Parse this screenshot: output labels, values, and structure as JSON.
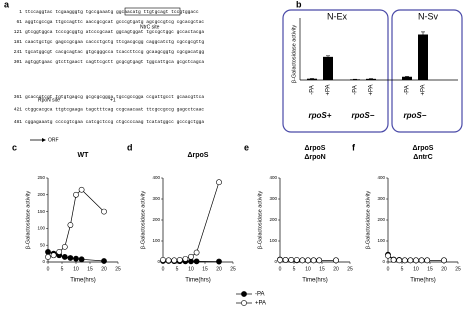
{
  "sequence_panel": {
    "label": "a",
    "lines": [
      {
        "number": "1",
        "text": "ttccaggtac tcgaagggtg tgccgaaatg ggcaacatg ttgtgcagt tccgtggacc"
      },
      {
        "number": "61",
        "text": "aggtcgccga ttgccagttc aaccgcgcat gcccgtgatg agcgccgtcg cgcacgctac"
      },
      {
        "number": "121",
        "text": "gtcggtggca tcccgcggtg atcccgcaat ggcagtggat tgccgctggc gccactacga"
      },
      {
        "number": "181",
        "text": "caactgctgc gagccgcgaa caccctgctg ttcgacgcgg caggcatctg cgccgcgttg"
      },
      {
        "number": "241",
        "text": "tgcatggcgt cacgcagtac gtgcgggcca tcaccttccg gcaagcggtg cgcgacatgg"
      },
      {
        "number": "301",
        "text": "agtggtgaac gtcttgaact cagttcgctt gcgcgtgagt tggcattgca gcgctcagca"
      },
      {
        "number": "361",
        "text": "gcaccgtcgt tgtgtgagcg gcgcgcggga tgccgccgga ccgattgcct gcaacgttca"
      },
      {
        "number": "421",
        "text": "ctggcacgca ttgtcgaaga tagctttcag ccgcaacaat ttcgccgccg gagcctcaac"
      },
      {
        "number": "481",
        "text": "cggagaaatg ccccgtcgaa catcgctccg ctgccccaag tcatatggcc gcccgctgga"
      }
    ],
    "annotations": {
      "ntrc": "NtrC site",
      "rpon": "RpoN site",
      "start": "+1",
      "orf": "ORF"
    }
  },
  "chart_data": [
    {
      "type": "bar",
      "label": "b",
      "ylabel": "β-Galactosidase activity",
      "ylim": [
        0,
        400
      ],
      "color": "#000000",
      "groups": [
        {
          "name": "N-Ex",
          "subgroups": [
            {
              "name": "rpoS+",
              "categories": [
                "-PA",
                "+PA"
              ],
              "values": [
                10,
                178
              ],
              "errors": [
                2,
                8
              ]
            },
            {
              "name": "rpoS−",
              "categories": [
                "-PA",
                "+PA"
              ],
              "values": [
                5,
                9
              ],
              "errors": [
                1,
                2
              ]
            }
          ]
        },
        {
          "name": "N-Sv",
          "subgroups": [
            {
              "name": "rpoS−",
              "categories": [
                "-PA",
                "+PA"
              ],
              "values": [
                25,
                350
              ],
              "errors": [
                3,
                20
              ]
            }
          ]
        }
      ]
    },
    {
      "type": "line",
      "label": "c",
      "title": "WT",
      "xlabel": "Time(hrs)",
      "ylabel": "β-Galactosidase activity",
      "x": [
        0,
        2,
        4,
        6,
        8,
        10,
        12,
        20
      ],
      "xlim": [
        0,
        25
      ],
      "xticks": [
        0,
        5,
        10,
        15,
        20,
        25
      ],
      "ylim": [
        0,
        250
      ],
      "yticks": [
        0,
        50,
        100,
        150,
        200,
        250
      ],
      "series": [
        {
          "name": "-PA",
          "color": "#000000",
          "values": [
            30,
            25,
            20,
            15,
            12,
            10,
            8,
            3
          ]
        },
        {
          "name": "+PA",
          "color": "#ffffff",
          "values": [
            15,
            20,
            30,
            45,
            110,
            200,
            215,
            150
          ]
        }
      ]
    },
    {
      "type": "line",
      "label": "d",
      "title": "ΔrpoS",
      "xlabel": "Time(hrs)",
      "ylabel": "β-Galactosidase activity",
      "x": [
        0,
        2,
        4,
        6,
        8,
        10,
        12,
        20
      ],
      "xlim": [
        0,
        25
      ],
      "xticks": [
        0,
        5,
        10,
        15,
        20,
        25
      ],
      "ylim": [
        0,
        400
      ],
      "yticks": [
        0,
        100,
        200,
        300,
        400
      ],
      "series": [
        {
          "name": "-PA",
          "color": "#000000",
          "values": [
            5,
            5,
            4,
            4,
            3,
            3,
            3,
            2
          ]
        },
        {
          "name": "+PA",
          "color": "#ffffff",
          "values": [
            10,
            8,
            8,
            10,
            15,
            25,
            45,
            380
          ]
        }
      ]
    },
    {
      "type": "line",
      "label": "e",
      "title": "ΔrpoS",
      "subtitle": "ΔrpoN",
      "xlabel": "Time(hrs)",
      "ylabel": "β-Galactosidase activity",
      "x": [
        0,
        2,
        4,
        6,
        8,
        10,
        12,
        14,
        20
      ],
      "xlim": [
        0,
        25
      ],
      "xticks": [
        0,
        5,
        10,
        15,
        20,
        25
      ],
      "ylim": [
        0,
        400
      ],
      "yticks": [
        0,
        100,
        200,
        300,
        400
      ],
      "series": [
        {
          "name": "-PA",
          "color": "#000000",
          "values": [
            12,
            10,
            10,
            8,
            8,
            8,
            8,
            8,
            8
          ]
        },
        {
          "name": "+PA",
          "color": "#ffffff",
          "values": [
            10,
            10,
            10,
            10,
            8,
            8,
            8,
            8,
            8
          ]
        }
      ]
    },
    {
      "type": "line",
      "label": "f",
      "title": "ΔrpoS",
      "subtitle": "ΔntrC",
      "xlabel": "Time(hrs)",
      "ylabel": "β-Galactosidase activity",
      "x": [
        0,
        2,
        4,
        6,
        8,
        10,
        12,
        14,
        20
      ],
      "xlim": [
        0,
        25
      ],
      "xticks": [
        0,
        5,
        10,
        15,
        20,
        25
      ],
      "ylim": [
        0,
        400
      ],
      "yticks": [
        0,
        100,
        200,
        300,
        400
      ],
      "series": [
        {
          "name": "-PA",
          "color": "#000000",
          "values": [
            35,
            12,
            10,
            8,
            8,
            8,
            8,
            8,
            8
          ]
        },
        {
          "name": "+PA",
          "color": "#ffffff",
          "values": [
            30,
            10,
            8,
            8,
            8,
            8,
            8,
            8,
            8
          ]
        }
      ]
    }
  ]
}
